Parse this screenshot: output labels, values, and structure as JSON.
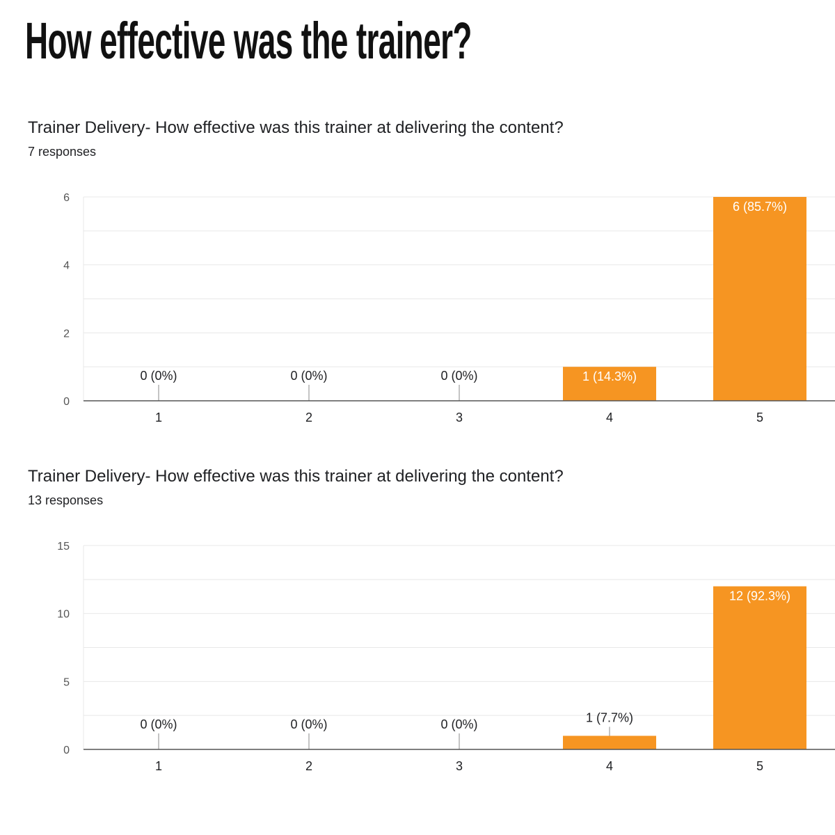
{
  "heading": "How effective was the trainer?",
  "colors": {
    "bar": "#f69522",
    "grid": "#e8e8e8",
    "axis": "#555555",
    "text": "#202124"
  },
  "chart_data": [
    {
      "type": "bar",
      "title": "Trainer Delivery- How effective was this trainer at delivering the content?",
      "subtitle": "7 responses",
      "categories": [
        "1",
        "2",
        "3",
        "4",
        "5"
      ],
      "values": [
        0,
        0,
        0,
        1,
        6
      ],
      "data_labels": [
        "0 (0%)",
        "0 (0%)",
        "0 (0%)",
        "1 (14.3%)",
        "6 (85.7%)"
      ],
      "ylim": [
        0,
        6
      ],
      "yticks": [
        0,
        2,
        4,
        6
      ],
      "grid": true
    },
    {
      "type": "bar",
      "title": "Trainer Delivery- How effective was this trainer at delivering the content?",
      "subtitle": "13 responses",
      "categories": [
        "1",
        "2",
        "3",
        "4",
        "5"
      ],
      "values": [
        0,
        0,
        0,
        1,
        12
      ],
      "data_labels": [
        "0 (0%)",
        "0 (0%)",
        "0 (0%)",
        "1 (7.7%)",
        "12 (92.3%)"
      ],
      "ylim": [
        0,
        15
      ],
      "yticks": [
        0,
        5,
        10,
        15
      ],
      "grid": true
    }
  ]
}
